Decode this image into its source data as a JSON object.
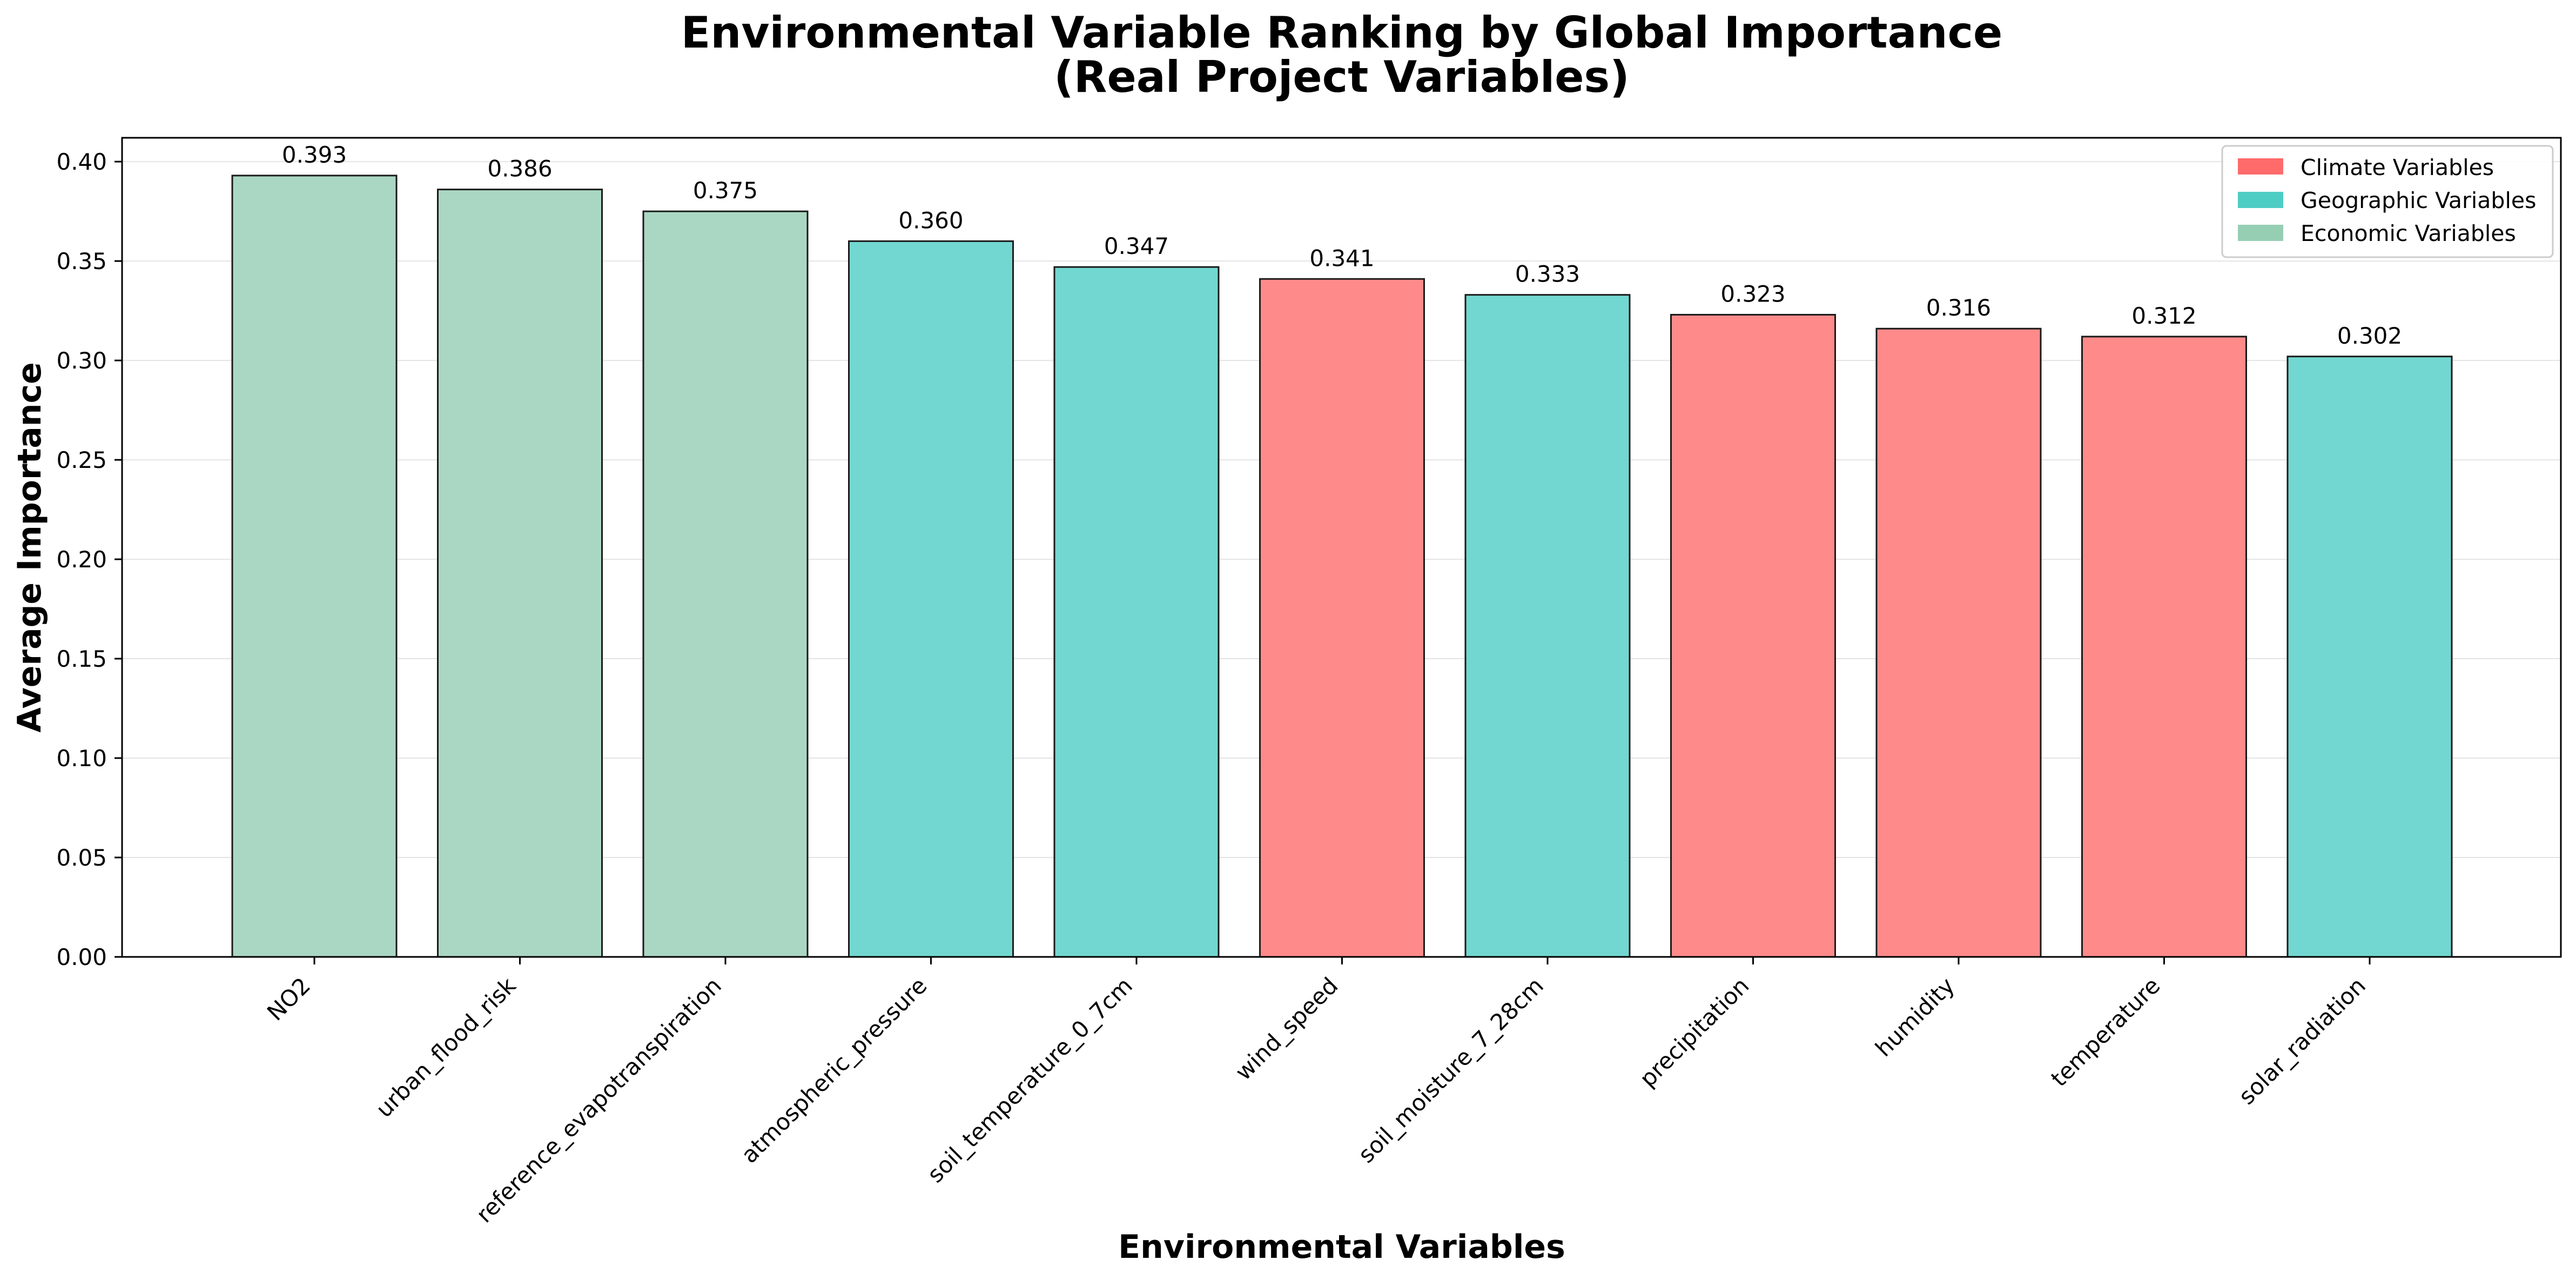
{
  "chart_data": {
    "type": "bar",
    "title_line1": "Environmental Variable Ranking by Global Importance",
    "title_line2": "(Real Project Variables)",
    "xlabel": "Environmental Variables",
    "ylabel": "Average Importance",
    "ylim": [
      0,
      0.412
    ],
    "yticks": [
      "0.00",
      "0.05",
      "0.10",
      "0.15",
      "0.20",
      "0.25",
      "0.30",
      "0.35",
      "0.40"
    ],
    "grid": "y-axis horizontal gridlines on",
    "legend_position": "top-right",
    "categories": [
      "NO2",
      "urban_flood_risk",
      "reference_evapotranspiration",
      "atmospheric_pressure",
      "soil_temperature_0_7cm",
      "wind_speed",
      "soil_moisture_7_28cm",
      "precipitation",
      "humidity",
      "temperature",
      "solar_radiation"
    ],
    "values": [
      0.393,
      0.386,
      0.375,
      0.36,
      0.347,
      0.341,
      0.333,
      0.323,
      0.316,
      0.312,
      0.302
    ],
    "value_labels": [
      "0.393",
      "0.386",
      "0.375",
      "0.360",
      "0.347",
      "0.341",
      "0.333",
      "0.323",
      "0.316",
      "0.312",
      "0.302"
    ],
    "groups": [
      "Economic Variables",
      "Economic Variables",
      "Economic Variables",
      "Geographic Variables",
      "Geographic Variables",
      "Climate Variables",
      "Geographic Variables",
      "Climate Variables",
      "Climate Variables",
      "Climate Variables",
      "Geographic Variables"
    ],
    "legend": [
      {
        "name": "Climate Variables",
        "color": "#FF6B6B"
      },
      {
        "name": "Geographic Variables",
        "color": "#4ECDC4"
      },
      {
        "name": "Economic Variables",
        "color": "#96CEB4"
      }
    ],
    "bar_colors": {
      "Climate Variables": "#FF8A8A",
      "Geographic Variables": "#72D7D0",
      "Economic Variables": "#AAD7C3"
    }
  }
}
